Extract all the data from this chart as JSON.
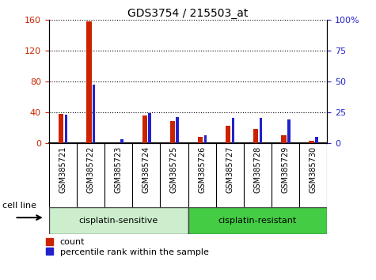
{
  "title": "GDS3754 / 215503_at",
  "samples": [
    "GSM385721",
    "GSM385722",
    "GSM385723",
    "GSM385724",
    "GSM385725",
    "GSM385726",
    "GSM385727",
    "GSM385728",
    "GSM385729",
    "GSM385730"
  ],
  "count": [
    38,
    158,
    0,
    35,
    28,
    8,
    22,
    18,
    10,
    3
  ],
  "percentile": [
    23,
    47,
    3,
    24,
    21,
    6,
    20,
    20,
    19,
    5
  ],
  "count_color": "#cc2200",
  "percentile_color": "#2222cc",
  "left_ylim": [
    0,
    160
  ],
  "left_yticks": [
    0,
    40,
    80,
    120,
    160
  ],
  "right_ylim": [
    0,
    100
  ],
  "right_yticks": [
    0,
    25,
    50,
    75,
    100
  ],
  "right_yticklabels": [
    "0",
    "25",
    "50",
    "75",
    "100%"
  ],
  "groups": [
    {
      "label": "cisplatin-sensitive",
      "indices": [
        0,
        1,
        2,
        3,
        4
      ],
      "color": "#cceecc"
    },
    {
      "label": "cisplatin-resistant",
      "indices": [
        5,
        6,
        7,
        8,
        9
      ],
      "color": "#44cc44"
    }
  ],
  "group_label": "cell line",
  "legend_count": "count",
  "legend_percentile": "percentile rank within the sample",
  "tick_label_color_left": "#cc2200",
  "tick_label_color_right": "#2222cc",
  "xtick_bg": "#d0d0d0"
}
